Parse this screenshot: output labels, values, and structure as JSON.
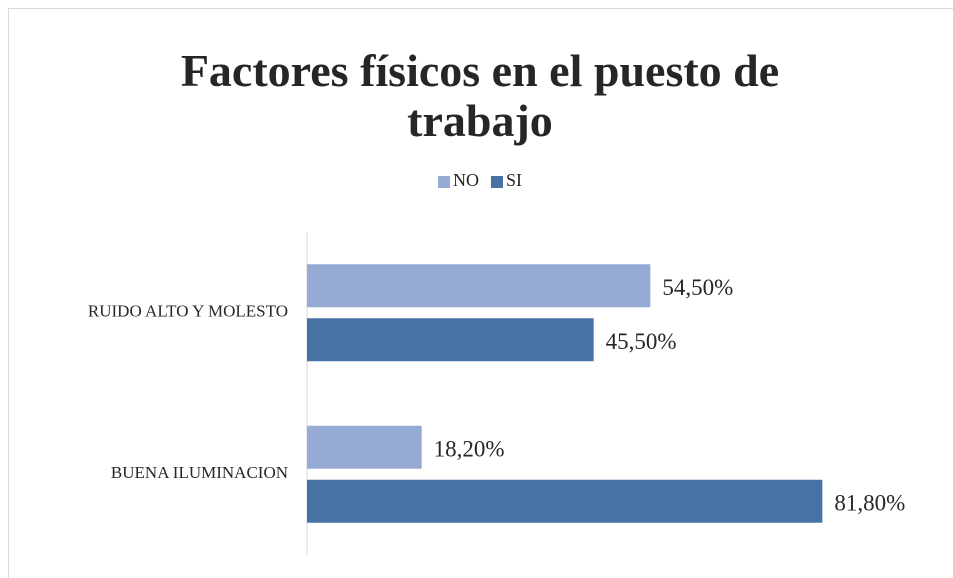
{
  "chart_data": {
    "type": "bar",
    "orientation": "horizontal",
    "title": "Factores físicos en el puesto de trabajo",
    "categories": [
      "RUIDO ALTO Y MOLESTO",
      "BUENA ILUMINACION"
    ],
    "series": [
      {
        "name": "NO",
        "color": "#95abd3",
        "values": [
          54.5,
          18.2
        ],
        "value_labels": [
          "54,50%",
          "18,20%"
        ]
      },
      {
        "name": "SI",
        "color": "#4672a6",
        "values": [
          45.5,
          81.8
        ],
        "value_labels": [
          "45,50%",
          "81,80%"
        ]
      }
    ],
    "xlim": [
      0,
      100
    ],
    "legend": "top"
  }
}
